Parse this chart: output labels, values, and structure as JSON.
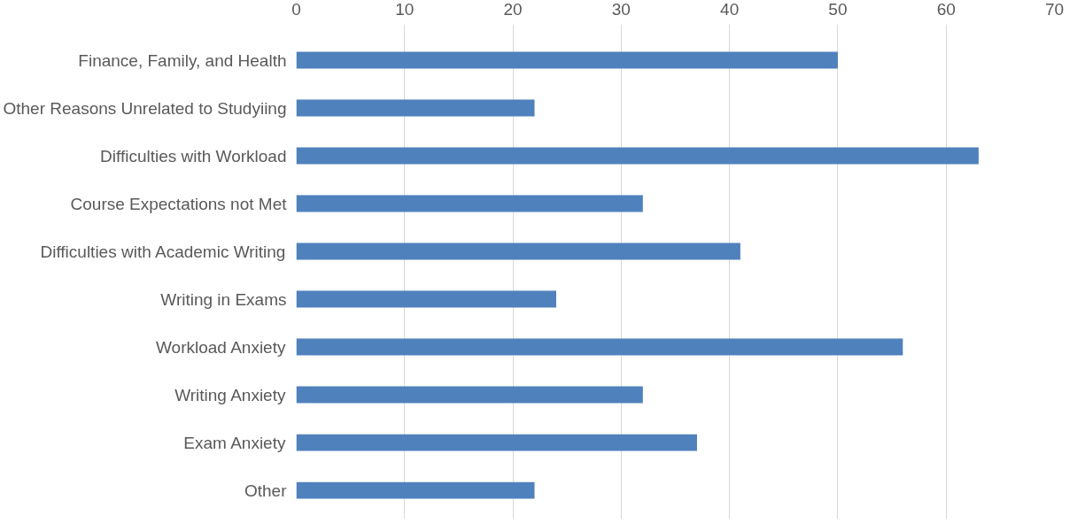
{
  "chart_data": {
    "type": "bar",
    "orientation": "horizontal",
    "categories": [
      "Finance, Family, and Health",
      "Other Reasons Unrelated to Studyiing",
      "Difficulties with Workload",
      "Course Expectations not Met",
      "Difficulties with Academic Writing",
      "Writing in Exams",
      "Workload Anxiety",
      "Writing Anxiety",
      "Exam Anxiety",
      "Other"
    ],
    "values": [
      50,
      22,
      63,
      32,
      41,
      24,
      56,
      32,
      37,
      22
    ],
    "color": "#4f81bd",
    "xlim": [
      0,
      70
    ],
    "xticks": [
      0,
      10,
      20,
      30,
      40,
      50,
      60,
      70
    ],
    "grid": "x"
  }
}
